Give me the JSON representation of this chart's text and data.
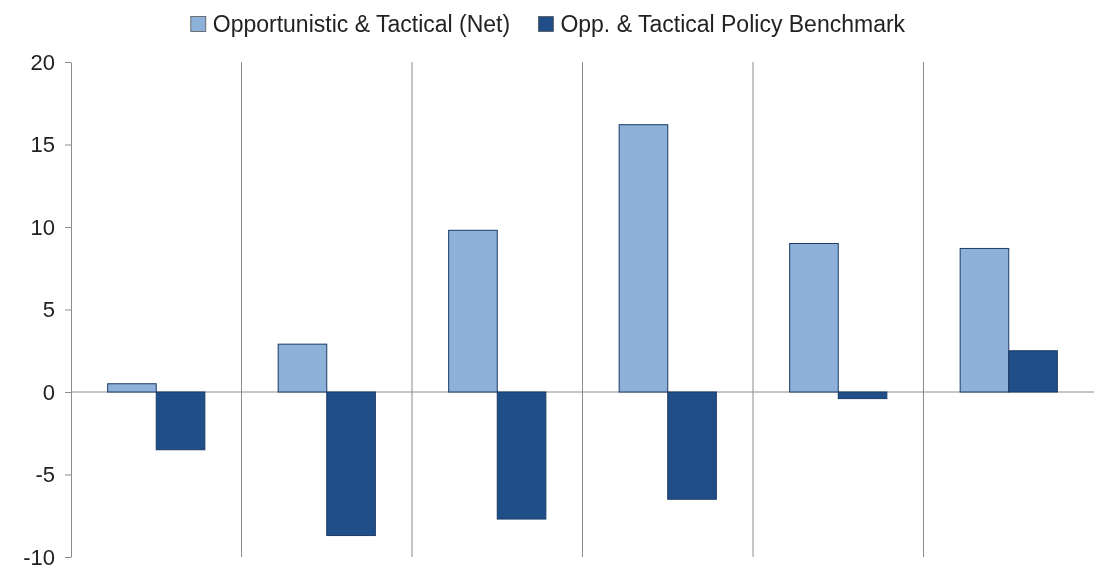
{
  "chart_data": {
    "type": "bar",
    "categories": [
      null,
      null,
      null,
      null,
      null,
      null
    ],
    "series": [
      {
        "name": "Opportunistic & Tactical (Net)",
        "color": "#8eb1da",
        "values": [
          0.5,
          2.9,
          9.8,
          16.2,
          9.0,
          8.7
        ]
      },
      {
        "name": "Opp. & Tactical Policy Benchmark",
        "color": "#1f4e89",
        "values": [
          -3.5,
          -8.7,
          -7.7,
          -6.5,
          -0.4,
          2.5
        ]
      }
    ],
    "ylim": [
      -10,
      20
    ],
    "yticks": [
      -10,
      -5,
      0,
      5,
      10,
      15,
      20
    ],
    "grid": "x",
    "legend": "top",
    "tick_labels": "y",
    "ref_lines": [
      {
        "axis": "y",
        "value": 0,
        "color": "#8c8c8c"
      }
    ]
  }
}
